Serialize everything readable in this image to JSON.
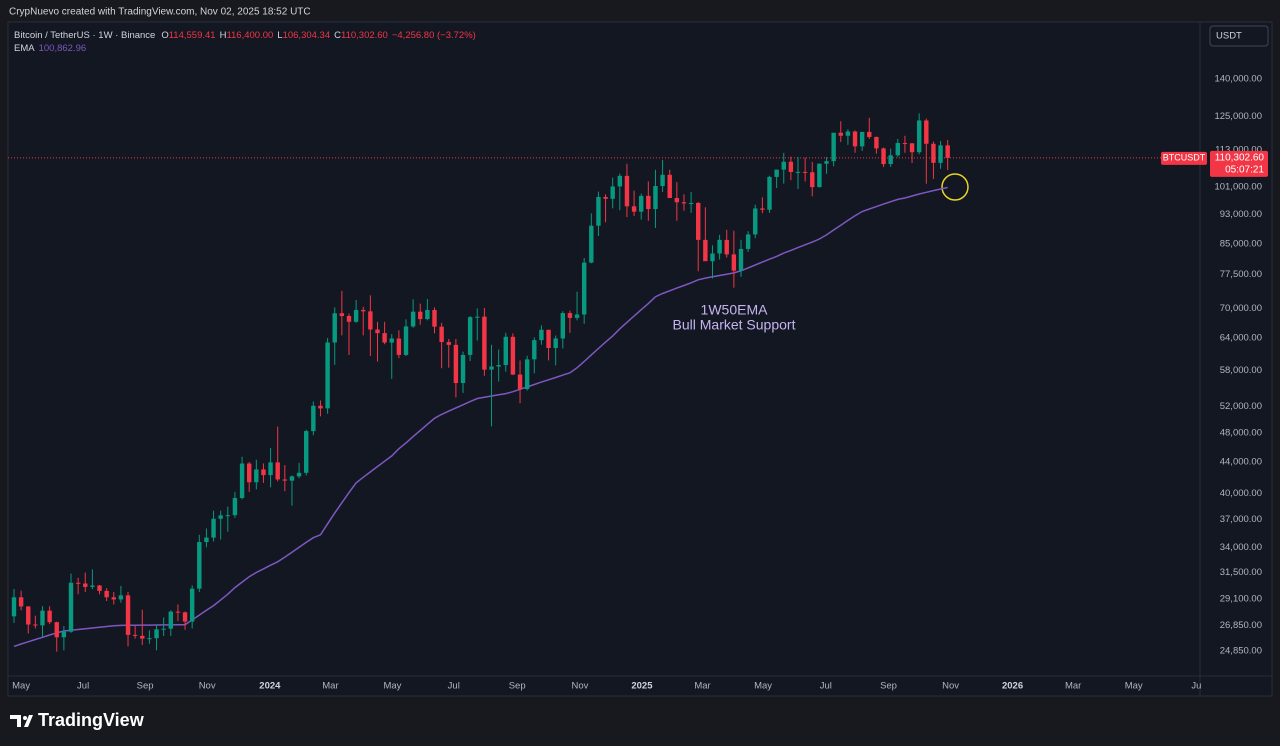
{
  "header": {
    "attribution": "CrypNuevo created with TradingView.com, Nov 02, 2025 18:52 UTC"
  },
  "chart_data": {
    "type": "candlestick",
    "symbol": "Bitcoin / TetherUS · 1W · Binance",
    "legend_fields": [
      {
        "label": "O",
        "value": "114,559.41"
      },
      {
        "label": "H",
        "value": "116,400.00"
      },
      {
        "label": "L",
        "value": "106,304.34"
      },
      {
        "label": "C",
        "value": "110,302.60"
      }
    ],
    "change": "−4,256.80 (−3.72%)",
    "currency": "USDT",
    "up_color": "#089981",
    "down_color": "#f23645",
    "log_scale": true,
    "grid": false,
    "ohlc": [
      [
        27590,
        29970,
        27050,
        29230
      ],
      [
        29230,
        29820,
        28100,
        28430
      ],
      [
        28430,
        28460,
        26200,
        26920
      ],
      [
        26920,
        27650,
        26600,
        26850
      ],
      [
        26850,
        28450,
        25870,
        28070
      ],
      [
        28070,
        28450,
        26950,
        27110
      ],
      [
        27110,
        27150,
        24800,
        25900
      ],
      [
        25900,
        26800,
        24900,
        26340
      ],
      [
        26340,
        31400,
        26250,
        30540
      ],
      [
        30540,
        31000,
        29500,
        30470
      ],
      [
        30470,
        31500,
        29700,
        30160
      ],
      [
        30160,
        31800,
        29950,
        30290
      ],
      [
        30290,
        30340,
        29500,
        29800
      ],
      [
        29800,
        30050,
        28900,
        29230
      ],
      [
        29230,
        29700,
        28600,
        29040
      ],
      [
        29040,
        30250,
        28750,
        29400
      ],
      [
        29400,
        29700,
        25200,
        26090
      ],
      [
        26090,
        26800,
        25800,
        26010
      ],
      [
        26010,
        28150,
        25300,
        25800
      ],
      [
        25800,
        26450,
        25400,
        25830
      ],
      [
        25830,
        26900,
        24900,
        26530
      ],
      [
        26530,
        27500,
        26000,
        26580
      ],
      [
        26580,
        28100,
        26000,
        27990
      ],
      [
        27990,
        28600,
        27200,
        27930
      ],
      [
        27930,
        28000,
        26500,
        27160
      ],
      [
        27160,
        30300,
        26600,
        30000
      ],
      [
        30000,
        35300,
        29700,
        34540
      ],
      [
        34540,
        35980,
        34000,
        35010
      ],
      [
        35010,
        37970,
        34600,
        37060
      ],
      [
        37060,
        37980,
        34800,
        37440
      ],
      [
        37440,
        38450,
        35630,
        37460
      ],
      [
        37460,
        40200,
        37160,
        39460
      ],
      [
        39460,
        44700,
        39300,
        43790
      ],
      [
        43790,
        44000,
        40200,
        41380
      ],
      [
        41380,
        44300,
        40500,
        43010
      ],
      [
        43010,
        43800,
        41300,
        42280
      ],
      [
        42280,
        45900,
        40750,
        43940
      ],
      [
        43940,
        48970,
        41500,
        41730
      ],
      [
        41730,
        43580,
        40280,
        41580
      ],
      [
        41580,
        42250,
        38550,
        42120
      ],
      [
        42120,
        43880,
        41900,
        42580
      ],
      [
        42580,
        48500,
        42250,
        48300
      ],
      [
        48300,
        52820,
        47700,
        52140
      ],
      [
        52140,
        52990,
        50500,
        51730
      ],
      [
        51730,
        64000,
        50900,
        63130
      ],
      [
        63130,
        70200,
        59000,
        68960
      ],
      [
        68960,
        73800,
        64500,
        68390
      ],
      [
        68390,
        68900,
        60800,
        67210
      ],
      [
        67210,
        71770,
        67000,
        69650
      ],
      [
        69650,
        70320,
        64500,
        69360
      ],
      [
        69360,
        72800,
        60600,
        65660
      ],
      [
        65660,
        67200,
        59600,
        64940
      ],
      [
        64940,
        67200,
        62800,
        63120
      ],
      [
        63120,
        64740,
        56550,
        63890
      ],
      [
        63890,
        65500,
        60200,
        60800
      ],
      [
        60800,
        67700,
        60600,
        66270
      ],
      [
        66270,
        71950,
        66000,
        69290
      ],
      [
        69290,
        71000,
        66600,
        67760
      ],
      [
        67760,
        71990,
        67500,
        69650
      ],
      [
        69650,
        70200,
        64900,
        66220
      ],
      [
        66220,
        67000,
        58400,
        63210
      ],
      [
        63210,
        63800,
        58500,
        62680
      ],
      [
        62680,
        63800,
        53480,
        55850
      ],
      [
        55850,
        61400,
        54200,
        60800
      ],
      [
        60800,
        68370,
        59700,
        68160
      ],
      [
        68160,
        70000,
        63500,
        68250
      ],
      [
        68250,
        70080,
        57100,
        58160
      ],
      [
        58160,
        62700,
        49000,
        58710
      ],
      [
        58710,
        61800,
        56100,
        58970
      ],
      [
        58970,
        65000,
        57800,
        64220
      ],
      [
        64220,
        64900,
        57200,
        57300
      ],
      [
        57300,
        59800,
        52550,
        54840
      ],
      [
        54840,
        60650,
        54600,
        59990
      ],
      [
        59990,
        64100,
        57500,
        63580
      ],
      [
        63580,
        66500,
        62700,
        65600
      ],
      [
        65600,
        65600,
        59800,
        62090
      ],
      [
        62090,
        64480,
        58900,
        63900
      ],
      [
        63900,
        69400,
        62000,
        69000
      ],
      [
        69000,
        69500,
        65000,
        68000
      ],
      [
        68000,
        73600,
        67500,
        68700
      ],
      [
        68700,
        81500,
        66800,
        80370
      ],
      [
        80370,
        93250,
        80200,
        89850
      ],
      [
        89850,
        99600,
        87100,
        98000
      ],
      [
        98000,
        98800,
        90800,
        97460
      ],
      [
        97460,
        103900,
        94700,
        101170
      ],
      [
        101170,
        105200,
        94150,
        104460
      ],
      [
        104460,
        108350,
        92200,
        95270
      ],
      [
        95270,
        99900,
        92500,
        93740
      ],
      [
        93740,
        99000,
        91500,
        98330
      ],
      [
        98330,
        102700,
        91200,
        94480
      ],
      [
        94480,
        106400,
        89250,
        101300
      ],
      [
        101300,
        109600,
        99500,
        104800
      ],
      [
        104800,
        106400,
        97800,
        97690
      ],
      [
        97690,
        102500,
        91200,
        96460
      ],
      [
        96460,
        98800,
        94000,
        96120
      ],
      [
        96120,
        99500,
        93400,
        96250
      ],
      [
        96250,
        96500,
        78300,
        86080
      ],
      [
        86080,
        95000,
        81500,
        80710
      ],
      [
        80710,
        84700,
        76600,
        82610
      ],
      [
        82610,
        87400,
        81100,
        86080
      ],
      [
        86080,
        88750,
        81600,
        82390
      ],
      [
        82390,
        88500,
        74500,
        78430
      ],
      [
        78430,
        86100,
        77000,
        83760
      ],
      [
        83760,
        88400,
        83000,
        87510
      ],
      [
        87510,
        95750,
        86500,
        94660
      ],
      [
        94660,
        97900,
        93300,
        94300
      ],
      [
        94300,
        104500,
        93400,
        104120
      ],
      [
        104120,
        105800,
        100700,
        106450
      ],
      [
        106450,
        111980,
        102000,
        109000
      ],
      [
        109000,
        110700,
        103100,
        105700
      ],
      [
        105700,
        110600,
        100400,
        105730
      ],
      [
        105730,
        110400,
        102700,
        105600
      ],
      [
        105600,
        108950,
        98200,
        100960
      ],
      [
        100960,
        108500,
        100900,
        108360
      ],
      [
        108360,
        110500,
        105100,
        109200
      ],
      [
        109200,
        118900,
        107500,
        119000
      ],
      [
        119000,
        123200,
        115700,
        117920
      ],
      [
        117920,
        120250,
        114700,
        119450
      ],
      [
        119450,
        119800,
        112000,
        114210
      ],
      [
        114210,
        119300,
        112650,
        119300
      ],
      [
        119300,
        124500,
        116800,
        117490
      ],
      [
        117490,
        117600,
        111700,
        113500
      ],
      [
        113500,
        113800,
        107300,
        108250
      ],
      [
        108250,
        113400,
        107300,
        111150
      ],
      [
        111150,
        116800,
        110600,
        115350
      ],
      [
        115350,
        117900,
        112000,
        115250
      ],
      [
        115250,
        115400,
        108600,
        112200
      ],
      [
        112200,
        126200,
        111500,
        123500
      ],
      [
        123500,
        124200,
        102000,
        115100
      ],
      [
        115100,
        115900,
        103500,
        108650
      ],
      [
        108650,
        116100,
        106700,
        114560
      ],
      [
        114559.41,
        116400,
        106304.34,
        110302.6
      ]
    ],
    "ema": {
      "name": "EMA",
      "value_label": "100,862.96",
      "color": "#7e57c2",
      "values": [
        25200,
        25380,
        25550,
        25730,
        25900,
        26080,
        26250,
        26400,
        26460,
        26520,
        26580,
        26640,
        26700,
        26760,
        26820,
        26850,
        26860,
        26865,
        26870,
        26875,
        26880,
        26885,
        26890,
        26895,
        26900,
        27300,
        27700,
        28100,
        28500,
        29000,
        29500,
        30100,
        30600,
        31100,
        31500,
        31850,
        32200,
        32540,
        33000,
        33500,
        34000,
        34500,
        35000,
        35300,
        36500,
        37700,
        38900,
        40100,
        41300,
        42000,
        42700,
        43400,
        44100,
        44800,
        45800,
        46600,
        47500,
        48400,
        49300,
        50200,
        50800,
        51300,
        51800,
        52300,
        52800,
        53300,
        53500,
        53700,
        53900,
        54100,
        54400,
        54800,
        55200,
        55600,
        56000,
        56400,
        56800,
        57200,
        57600,
        58500,
        59600,
        60800,
        62000,
        63200,
        64400,
        65800,
        67100,
        68400,
        69700,
        71000,
        72500,
        73200,
        73800,
        74400,
        75000,
        75600,
        76300,
        76700,
        77000,
        77300,
        77600,
        77900,
        78400,
        79100,
        79800,
        80500,
        81200,
        81900,
        82700,
        83400,
        84100,
        84800,
        85500,
        86300,
        87400,
        88700,
        90000,
        91300,
        92600,
        93800,
        94500,
        95200,
        95900,
        96600,
        97300,
        97700,
        98300,
        98900,
        99400,
        99900,
        100400,
        100862.96
      ]
    },
    "annotation": [
      "1W50EMA",
      "Bull Market Support"
    ],
    "price_tag": {
      "symbol": "BTCUSDT",
      "price": "110,302.60",
      "countdown": "05:07:21"
    },
    "xlim": [
      -0.84,
      166.4
    ],
    "xticks": [
      {
        "value": 1,
        "label": "May"
      },
      {
        "value": 9.7,
        "label": "Jul"
      },
      {
        "value": 18.4,
        "label": "Sep"
      },
      {
        "value": 27.1,
        "label": "Nov"
      },
      {
        "value": 35.9,
        "label": "2024"
      },
      {
        "value": 44.4,
        "label": "Mar"
      },
      {
        "value": 53.1,
        "label": "May"
      },
      {
        "value": 61.7,
        "label": "Jul"
      },
      {
        "value": 70.6,
        "label": "Sep"
      },
      {
        "value": 79.4,
        "label": "Nov"
      },
      {
        "value": 88.1,
        "label": "2025"
      },
      {
        "value": 96.6,
        "label": "Mar"
      },
      {
        "value": 105.1,
        "label": "May"
      },
      {
        "value": 113.9,
        "label": "Jul"
      },
      {
        "value": 122.7,
        "label": "Sep"
      },
      {
        "value": 131.4,
        "label": "Nov"
      },
      {
        "value": 140.1,
        "label": "2026"
      },
      {
        "value": 148.6,
        "label": "Mar"
      },
      {
        "value": 157.1,
        "label": "May"
      },
      {
        "value": 165.9,
        "label": "Ju"
      }
    ],
    "ylim": [
      23110,
      164800
    ],
    "yticks": [
      {
        "value": 24850,
        "label": "24,850.00"
      },
      {
        "value": 26850,
        "label": "26,850.00"
      },
      {
        "value": 29100,
        "label": "29,100.00"
      },
      {
        "value": 31500,
        "label": "31,500.00"
      },
      {
        "value": 34000,
        "label": "34,000.00"
      },
      {
        "value": 37000,
        "label": "37,000.00"
      },
      {
        "value": 40000,
        "label": "40,000.00"
      },
      {
        "value": 44000,
        "label": "44,000.00"
      },
      {
        "value": 48000,
        "label": "48,000.00"
      },
      {
        "value": 52000,
        "label": "52,000.00"
      },
      {
        "value": 58000,
        "label": "58,000.00"
      },
      {
        "value": 64000,
        "label": "64,000.00"
      },
      {
        "value": 70000,
        "label": "70,000.00"
      },
      {
        "value": 77500,
        "label": "77,500.00"
      },
      {
        "value": 85000,
        "label": "85,000.00"
      },
      {
        "value": 93000,
        "label": "93,000.00"
      },
      {
        "value": 101000,
        "label": "101,000.00"
      },
      {
        "value": 113000,
        "label": "113,000.00"
      },
      {
        "value": 125000,
        "label": "125,000.00"
      },
      {
        "value": 140000,
        "label": "140,000.00"
      }
    ]
  },
  "footer": {
    "logo": "TradingView"
  }
}
